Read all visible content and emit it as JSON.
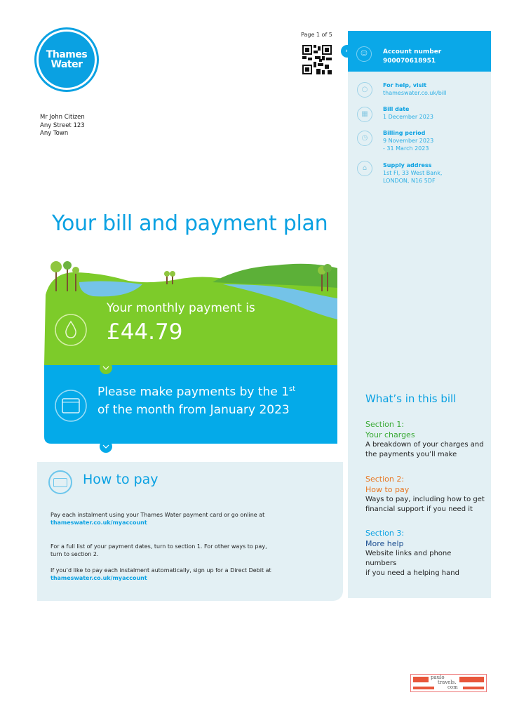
{
  "brand": {
    "logo_text": "Thames Water",
    "accent": "#0aa1e2",
    "green": "#7dcb2a"
  },
  "page_indicator": "Page 1 of 5",
  "recipient": {
    "name": "Mr John Citizen",
    "street": "Any Street 123",
    "town": "Any Town"
  },
  "sidebar": {
    "account": {
      "label": "Account number",
      "value": "900070618951",
      "icon": "user-icon"
    },
    "items": [
      {
        "label": "For help, visit",
        "value": "thameswater.co.uk/bill",
        "icon": "mouse-icon"
      },
      {
        "label": "Bill date",
        "value": "1 December 2023",
        "icon": "calendar-icon"
      },
      {
        "label": "Billing period",
        "value": "9 November 2023",
        "value2": "- 31 March 2023",
        "icon": "clock-icon"
      },
      {
        "label": "Supply address",
        "value": "1st Fl, 33 West Bank,",
        "value2": "LONDON, N16 5DF",
        "icon": "house-icon"
      }
    ],
    "contents": {
      "title": "What’s in this bill",
      "sections": [
        {
          "num": "Section 1:",
          "name": "Your charges",
          "desc": "A breakdown of your charges and the payments you’ll make",
          "color": "#3aaa35"
        },
        {
          "num": "Section 2:",
          "name": "How to pay",
          "desc": "Ways to pay, including how to get financial support if you need it",
          "color": "#e87722"
        },
        {
          "num": "Section 3:",
          "name": "More help",
          "desc": "Website links and phone numbers",
          "desc2": "if you need a helping hand",
          "color": "#1d4f91"
        }
      ]
    }
  },
  "main": {
    "title": "Your bill and payment plan",
    "monthly_label": "Your monthly payment is",
    "monthly_amount": "£44.79",
    "pay_by_line1": "Please make payments by the 1",
    "pay_by_sup": "st",
    "pay_by_line2": "of the month from January 2023",
    "how_to_pay": {
      "title": "How to pay",
      "p1": "Pay each instalment using your Thames Water payment card or go online at",
      "link1": "thameswater.co.uk/myaccount",
      "p2": "For a full list of your payment dates, turn to section 1. For other ways to pay, turn to section 2.",
      "p3": "If you’d like to pay each instalment automatically, sign up for a Direct Debit at",
      "link3": "thameswater.co.uk/myaccount"
    }
  },
  "watermark": {
    "line1": "paulo",
    "line2": "travels.",
    "line3": "com"
  }
}
